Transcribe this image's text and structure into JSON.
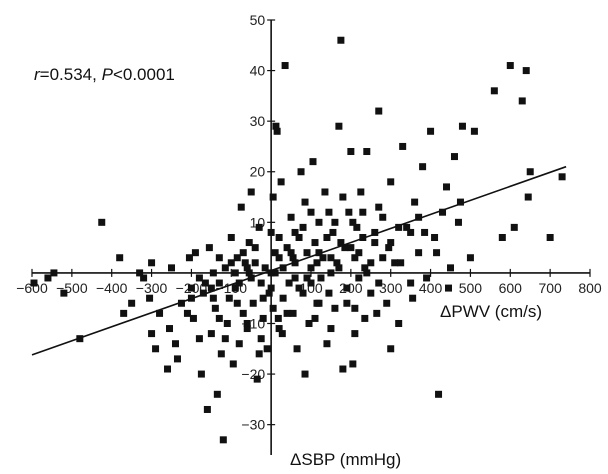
{
  "chart_data": {
    "type": "scatter",
    "title": "",
    "xlabel": "ΔPWV (cm/s)",
    "ylabel": "ΔSBP (mmHg)",
    "xlim": [
      -600,
      800
    ],
    "ylim": [
      -36,
      50
    ],
    "x_ticks": [
      -600,
      -500,
      -400,
      -300,
      -200,
      -100,
      100,
      200,
      300,
      400,
      500,
      600,
      700,
      800
    ],
    "y_ticks": [
      -30,
      -20,
      -10,
      10,
      20,
      30,
      40,
      50
    ],
    "x_tick_labels": [
      "−600",
      "−500",
      "−400",
      "−300",
      "−200",
      "−100",
      "100",
      "200",
      "300",
      "400",
      "500",
      "600",
      "700",
      "800"
    ],
    "y_tick_labels": [
      "−30",
      "−20",
      "−10",
      "10",
      "20",
      "30",
      "40",
      "50"
    ],
    "grid": false,
    "annotation": {
      "r_symbol": "r",
      "r_text": "=0.534, ",
      "p_symbol": "P",
      "p_text": "<0.0001"
    },
    "regression_line": {
      "x": [
        -600,
        740
      ],
      "y": [
        -16.2,
        21
      ]
    },
    "points": [
      [
        -595,
        -2
      ],
      [
        -545,
        0
      ],
      [
        -520,
        -4
      ],
      [
        -480,
        -13
      ],
      [
        -425,
        10
      ],
      [
        -380,
        3
      ],
      [
        -370,
        -8
      ],
      [
        -350,
        -6
      ],
      [
        -320,
        -1
      ],
      [
        -305,
        -5
      ],
      [
        -300,
        -12
      ],
      [
        -290,
        -15
      ],
      [
        -280,
        -8
      ],
      [
        -255,
        -11
      ],
      [
        -240,
        -14
      ],
      [
        -235,
        -17
      ],
      [
        -225,
        -6
      ],
      [
        -205,
        3
      ],
      [
        -200,
        -3
      ],
      [
        -195,
        -9
      ],
      [
        -180,
        -1
      ],
      [
        -175,
        -20
      ],
      [
        -170,
        -4
      ],
      [
        -160,
        -27
      ],
      [
        -155,
        5
      ],
      [
        -150,
        -12
      ],
      [
        -145,
        0
      ],
      [
        -140,
        -7
      ],
      [
        -135,
        -24
      ],
      [
        -130,
        -2
      ],
      [
        -125,
        -16
      ],
      [
        -120,
        -33
      ],
      [
        -115,
        1
      ],
      [
        -110,
        -10
      ],
      [
        -105,
        -5
      ],
      [
        -100,
        7
      ],
      [
        -95,
        -18
      ],
      [
        -90,
        -3
      ],
      [
        -85,
        3
      ],
      [
        -80,
        -14
      ],
      [
        -75,
        13
      ],
      [
        -70,
        -8
      ],
      [
        -65,
        2
      ],
      [
        -60,
        -11
      ],
      [
        -55,
        0
      ],
      [
        -50,
        16
      ],
      [
        -45,
        -6
      ],
      [
        -40,
        5
      ],
      [
        -35,
        -21
      ],
      [
        -30,
        9
      ],
      [
        -25,
        -2
      ],
      [
        -20,
        -9
      ],
      [
        -15,
        1
      ],
      [
        -10,
        -15
      ],
      [
        -5,
        -4
      ],
      [
        0,
        8
      ],
      [
        5,
        -7
      ],
      [
        10,
        0
      ],
      [
        12,
        29
      ],
      [
        15,
        28
      ],
      [
        18,
        -9
      ],
      [
        20,
        3
      ],
      [
        25,
        18
      ],
      [
        28,
        -12
      ],
      [
        30,
        -5
      ],
      [
        35,
        41
      ],
      [
        40,
        5
      ],
      [
        45,
        -2
      ],
      [
        50,
        11
      ],
      [
        55,
        -8
      ],
      [
        60,
        2
      ],
      [
        65,
        -15
      ],
      [
        70,
        7
      ],
      [
        75,
        20
      ],
      [
        80,
        -4
      ],
      [
        85,
        14
      ],
      [
        90,
        4
      ],
      [
        95,
        -10
      ],
      [
        100,
        1
      ],
      [
        105,
        22
      ],
      [
        110,
        6
      ],
      [
        115,
        -6
      ],
      [
        120,
        10
      ],
      [
        125,
        -1
      ],
      [
        130,
        3
      ],
      [
        135,
        16
      ],
      [
        140,
        -14
      ],
      [
        145,
        12
      ],
      [
        150,
        0
      ],
      [
        155,
        8
      ],
      [
        160,
        -7
      ],
      [
        165,
        2
      ],
      [
        170,
        29
      ],
      [
        175,
        46
      ],
      [
        180,
        -19
      ],
      [
        185,
        5
      ],
      [
        190,
        -3
      ],
      [
        195,
        12
      ],
      [
        200,
        24
      ],
      [
        205,
        -18
      ],
      [
        210,
        3
      ],
      [
        215,
        9
      ],
      [
        220,
        -1
      ],
      [
        225,
        16
      ],
      [
        230,
        7
      ],
      [
        235,
        -9
      ],
      [
        240,
        24
      ],
      [
        250,
        -4
      ],
      [
        260,
        6
      ],
      [
        270,
        32
      ],
      [
        280,
        11
      ],
      [
        290,
        -6
      ],
      [
        300,
        18
      ],
      [
        310,
        2
      ],
      [
        320,
        -10
      ],
      [
        330,
        25
      ],
      [
        340,
        9
      ],
      [
        350,
        -2
      ],
      [
        360,
        14
      ],
      [
        370,
        4
      ],
      [
        380,
        21
      ],
      [
        390,
        -1
      ],
      [
        400,
        28
      ],
      [
        410,
        7
      ],
      [
        420,
        -24
      ],
      [
        430,
        12
      ],
      [
        440,
        17
      ],
      [
        450,
        1
      ],
      [
        460,
        23
      ],
      [
        470,
        10
      ],
      [
        480,
        29
      ],
      [
        500,
        3
      ],
      [
        510,
        28
      ],
      [
        560,
        36
      ],
      [
        580,
        7
      ],
      [
        600,
        41
      ],
      [
        610,
        9
      ],
      [
        630,
        34
      ],
      [
        640,
        40
      ],
      [
        645,
        15
      ],
      [
        650,
        20
      ],
      [
        700,
        7
      ],
      [
        730,
        19
      ],
      [
        -560,
        -1
      ],
      [
        -330,
        0
      ],
      [
        -260,
        -19
      ],
      [
        -190,
        4
      ],
      [
        -165,
        -2
      ],
      [
        -145,
        -5
      ],
      [
        -115,
        -13
      ],
      [
        -85,
        -6
      ],
      [
        -55,
        6
      ],
      [
        -25,
        -13
      ],
      [
        5,
        15
      ],
      [
        55,
        3
      ],
      [
        85,
        -20
      ],
      [
        115,
        2
      ],
      [
        145,
        -4
      ],
      [
        175,
        6
      ],
      [
        205,
        10
      ],
      [
        235,
        1
      ],
      [
        265,
        -8
      ],
      [
        295,
        5
      ],
      [
        325,
        2
      ],
      [
        355,
        -5
      ],
      [
        385,
        8
      ],
      [
        415,
        4
      ],
      [
        445,
        -3
      ],
      [
        475,
        14
      ],
      [
        -60,
        -10
      ],
      [
        -30,
        -16
      ],
      [
        0,
        -3
      ],
      [
        30,
        1
      ],
      [
        60,
        8
      ],
      [
        90,
        -1
      ],
      [
        120,
        4
      ],
      [
        150,
        -11
      ],
      [
        180,
        15
      ],
      [
        210,
        -7
      ],
      [
        240,
        0
      ],
      [
        270,
        13
      ],
      [
        300,
        -15
      ],
      [
        -200,
        -5
      ],
      [
        -150,
        -3
      ],
      [
        -100,
        2
      ],
      [
        -50,
        -1
      ],
      [
        0,
        0
      ],
      [
        50,
        4
      ],
      [
        100,
        -2
      ],
      [
        150,
        3
      ],
      [
        200,
        5
      ],
      [
        250,
        2
      ],
      [
        300,
        6
      ],
      [
        350,
        8
      ],
      [
        -90,
        0
      ],
      [
        -70,
        4
      ],
      [
        -20,
        -5
      ],
      [
        20,
        -11
      ],
      [
        70,
        -3
      ],
      [
        120,
        -6
      ],
      [
        170,
        1
      ],
      [
        220,
        4
      ],
      [
        270,
        -2
      ],
      [
        320,
        9
      ],
      [
        370,
        11
      ],
      [
        -300,
        2
      ],
      [
        -250,
        1
      ],
      [
        -210,
        -8
      ],
      [
        -180,
        -13
      ],
      [
        -130,
        -9
      ],
      [
        -80,
        -2
      ],
      [
        -40,
        2
      ],
      [
        10,
        4
      ],
      [
        40,
        -8
      ],
      [
        80,
        9
      ],
      [
        110,
        -9
      ],
      [
        140,
        7
      ],
      [
        190,
        -6
      ],
      [
        230,
        12
      ],
      [
        260,
        8
      ],
      [
        -130,
        3
      ],
      [
        -60,
        1
      ],
      [
        20,
        7
      ],
      [
        60,
        -1
      ],
      [
        100,
        12
      ],
      [
        160,
        10
      ],
      [
        210,
        -12
      ],
      [
        280,
        3
      ]
    ]
  }
}
